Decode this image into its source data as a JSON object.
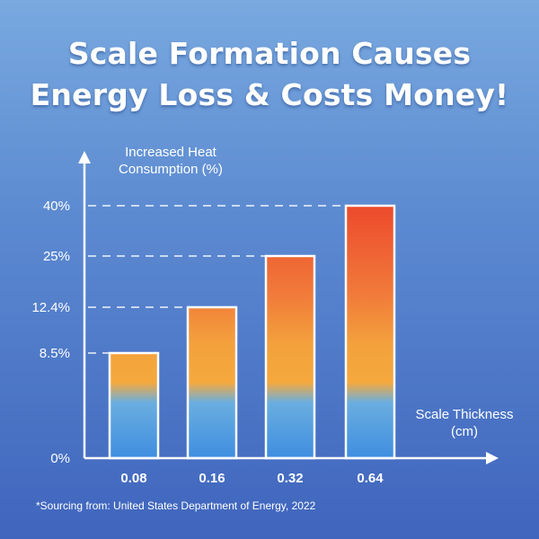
{
  "title_line1": "Scale Formation Causes",
  "title_line2": "Energy Loss & Costs Money!",
  "footnote": "*Sourcing from: United States Department of Energy, 2022",
  "chart_data": {
    "type": "bar",
    "title": "Scale Formation Causes Energy Loss & Costs Money!",
    "ylabel": "Increased Heat Consumption (%)",
    "xlabel": "Scale Thickness (cm)",
    "categories": [
      "0.08",
      "0.16",
      "0.32",
      "0.64"
    ],
    "values": [
      8.5,
      12.4,
      25,
      40
    ],
    "value_labels": [
      "8.5%",
      "12.4%",
      "25%",
      "40%"
    ],
    "y_ticks": [
      "0%",
      "8.5%",
      "12.4%",
      "25%",
      "40%"
    ],
    "y_tick_values": [
      0,
      8.5,
      12.4,
      25,
      40
    ],
    "x_unit": "cm",
    "grid": "dashed lines at bar tops",
    "colors": {
      "bar_top": "#ec4a2c",
      "bar_mid": "#f3a13c",
      "bar_bottom": "#3e8de0",
      "bar_border": "#ffffff"
    }
  }
}
